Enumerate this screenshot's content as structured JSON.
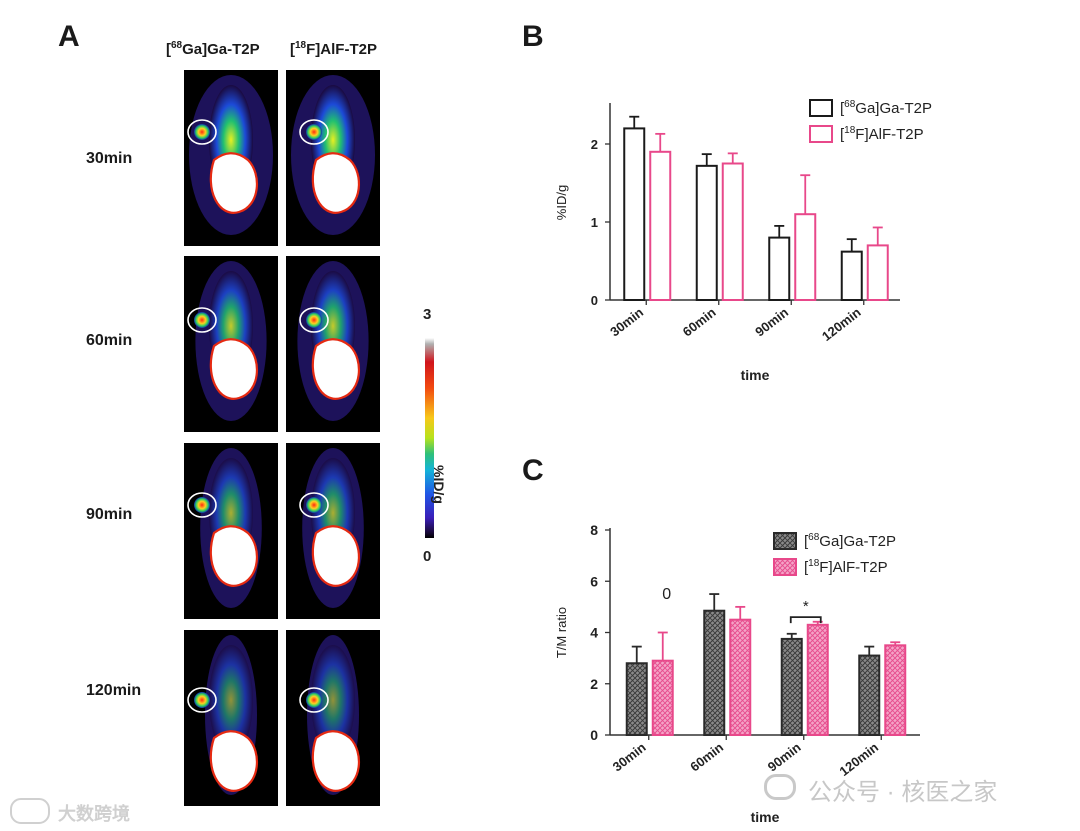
{
  "panelA": {
    "letter": "A",
    "col_headers": [
      {
        "sup": "68",
        "rest": "Ga]Ga-T2P"
      },
      {
        "sup": "18",
        "rest": "F]AlF-T2P"
      }
    ],
    "rows": [
      "30min",
      "60min",
      "90min",
      "120min"
    ],
    "colorbar": {
      "max": "3",
      "min": "0",
      "label": "%ID/g"
    }
  },
  "colors": {
    "black_series": "#1a1a1a",
    "pink_series": "#e8488a",
    "pink_fill": "#f7a9c9"
  },
  "chart_data": [
    {
      "panel": "B",
      "type": "bar",
      "categories": [
        "30min",
        "60min",
        "90min",
        "120min"
      ],
      "series": [
        {
          "name": "[68Ga]Ga-T2P",
          "sup": "68",
          "label_rest": "Ga]Ga-T2P",
          "values": [
            2.2,
            1.72,
            0.8,
            0.62
          ],
          "errors": [
            0.15,
            0.15,
            0.15,
            0.16
          ],
          "style": "open-black"
        },
        {
          "name": "[18F]AlF-T2P",
          "sup": "18",
          "label_rest": "F]AlF-T2P",
          "values": [
            1.9,
            1.75,
            1.1,
            0.7
          ],
          "errors": [
            0.23,
            0.13,
            0.5,
            0.23
          ],
          "style": "open-pink"
        }
      ],
      "xlabel": "time",
      "ylabel": "%ID/g",
      "ylim": [
        0,
        2.5
      ],
      "yticks": [
        "0",
        "1",
        "2"
      ],
      "legend": "top-right",
      "grid": false
    },
    {
      "panel": "C",
      "type": "bar",
      "categories": [
        "30min",
        "60min",
        "90min",
        "120min"
      ],
      "series": [
        {
          "name": "[68Ga]Ga-T2P",
          "sup": "68",
          "label_rest": "Ga]Ga-T2P",
          "values": [
            2.8,
            4.85,
            3.75,
            3.1
          ],
          "errors": [
            0.65,
            0.65,
            0.2,
            0.35
          ],
          "style": "hatched-gray"
        },
        {
          "name": "[18F]AlF-T2P",
          "sup": "18",
          "label_rest": "F]AlF-T2P",
          "values": [
            2.9,
            4.5,
            4.3,
            3.5
          ],
          "errors": [
            1.1,
            0.5,
            0.12,
            0.12
          ],
          "style": "hatched-pink"
        }
      ],
      "xlabel": "time",
      "ylabel": "T/M  ratio",
      "ylim": [
        0,
        8
      ],
      "yticks": [
        "0",
        "2",
        "4",
        "6",
        "8"
      ],
      "annotations": [
        {
          "text": "0",
          "category": "30min"
        },
        {
          "text": "*",
          "category": "90min",
          "bracket": true
        }
      ],
      "legend": "top-right",
      "grid": false
    }
  ],
  "watermarks": {
    "left": "大数跨境",
    "right": "公众号 · 核医之家"
  }
}
